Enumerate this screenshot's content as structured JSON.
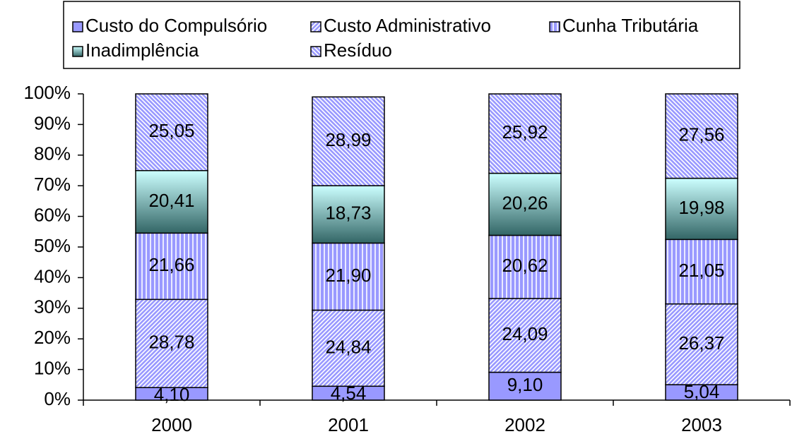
{
  "chart_data": {
    "type": "stacked-bar-100",
    "categories": [
      "2000",
      "2001",
      "2002",
      "2003"
    ],
    "series": [
      {
        "name": "Custo do Compulsório",
        "color": "#9999ff",
        "pattern": "solid",
        "values": [
          4.1,
          4.54,
          9.1,
          5.04
        ],
        "value_labels": [
          "4,10",
          "4,54",
          "9,10",
          "5,04"
        ]
      },
      {
        "name": "Custo Administrativo",
        "color": "#9999ff",
        "pattern": "diagonal-up",
        "values": [
          28.78,
          24.84,
          24.09,
          26.37
        ],
        "value_labels": [
          "28,78",
          "24,84",
          "24,09",
          "26,37"
        ]
      },
      {
        "name": "Cunha Tributária",
        "color": "#9999ff",
        "pattern": "vertical",
        "values": [
          21.66,
          21.9,
          20.62,
          21.05
        ],
        "value_labels": [
          "21,66",
          "21,90",
          "20,62",
          "21,05"
        ]
      },
      {
        "name": "Inadimplência",
        "color": "#ccffff",
        "pattern": "gradient",
        "values": [
          20.41,
          18.73,
          20.26,
          19.98
        ],
        "value_labels": [
          "20,41",
          "18,73",
          "20,26",
          "19,98"
        ]
      },
      {
        "name": "Resíduo",
        "color": "#9999ff",
        "pattern": "diagonal-down",
        "values": [
          25.05,
          28.99,
          25.92,
          27.56
        ],
        "value_labels": [
          "25,05",
          "28,99",
          "25,92",
          "27,56"
        ]
      }
    ],
    "ylim": [
      0,
      100
    ],
    "yticks": [
      {
        "value": 0,
        "label": "0%"
      },
      {
        "value": 10,
        "label": "10%"
      },
      {
        "value": 20,
        "label": "20%"
      },
      {
        "value": 30,
        "label": "30%"
      },
      {
        "value": 40,
        "label": "40%"
      },
      {
        "value": 50,
        "label": "50%"
      },
      {
        "value": 60,
        "label": "60%"
      },
      {
        "value": 70,
        "label": "70%"
      },
      {
        "value": 80,
        "label": "80%"
      },
      {
        "value": 90,
        "label": "90%"
      },
      {
        "value": 100,
        "label": "100%"
      }
    ],
    "grid": false,
    "legend": "top"
  }
}
